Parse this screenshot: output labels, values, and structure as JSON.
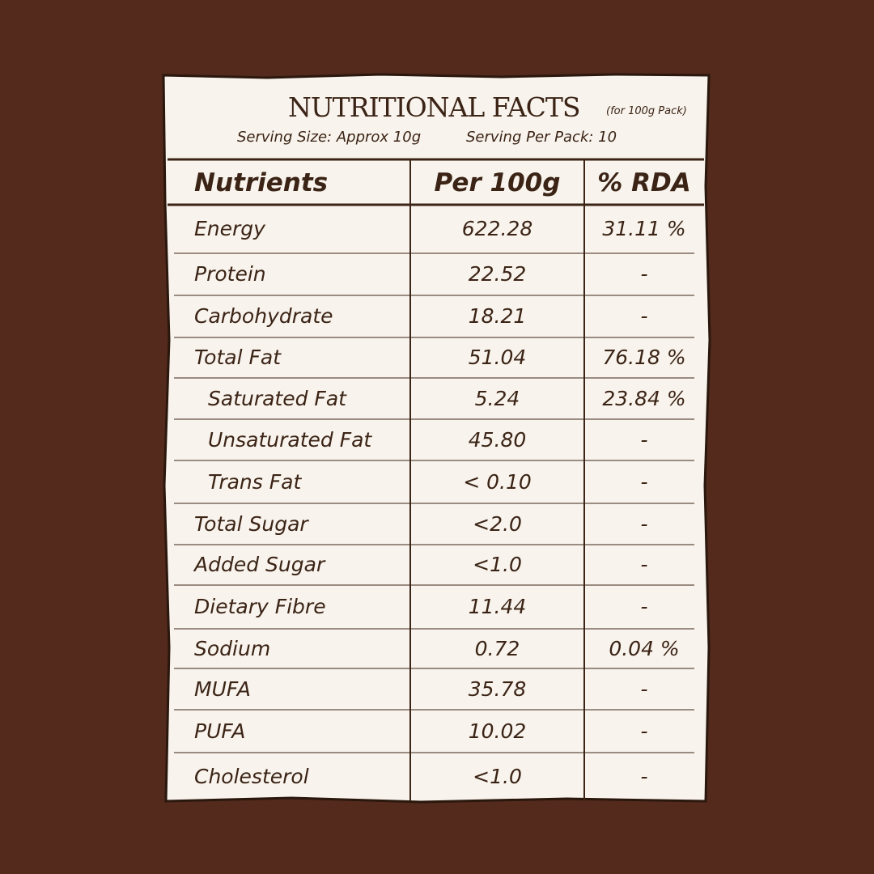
{
  "header": {
    "title": "NUTRITIONAL FACTS",
    "note": "(for 100g Pack)",
    "serving_size": "Serving Size: Approx 10g",
    "servings_per_pack": "Serving Per Pack: 10"
  },
  "table": {
    "columns": [
      "Nutrients",
      "Per 100g",
      "% RDA"
    ],
    "rows": [
      [
        "Energy",
        "622.28",
        "31.11 %"
      ],
      [
        "Protein",
        "22.52",
        "-"
      ],
      [
        "Carbohydrate",
        "18.21",
        "-"
      ],
      [
        "Total Fat",
        "51.04",
        "76.18 %"
      ],
      [
        "Saturated Fat",
        "5.24",
        "23.84 %"
      ],
      [
        "Unsaturated Fat",
        "45.80",
        "-"
      ],
      [
        "Trans Fat",
        "< 0.10",
        "-"
      ],
      [
        "Total Sugar",
        "<2.0",
        "-"
      ],
      [
        "Added Sugar",
        "<1.0",
        "-"
      ],
      [
        "Dietary Fibre",
        "11.44",
        "-"
      ],
      [
        "Sodium",
        "0.72",
        "0.04 %"
      ],
      [
        "MUFA",
        "35.78",
        "-"
      ],
      [
        "PUFA",
        "10.02",
        "-"
      ],
      [
        "Cholesterol",
        "<1.0",
        "-"
      ]
    ]
  }
}
